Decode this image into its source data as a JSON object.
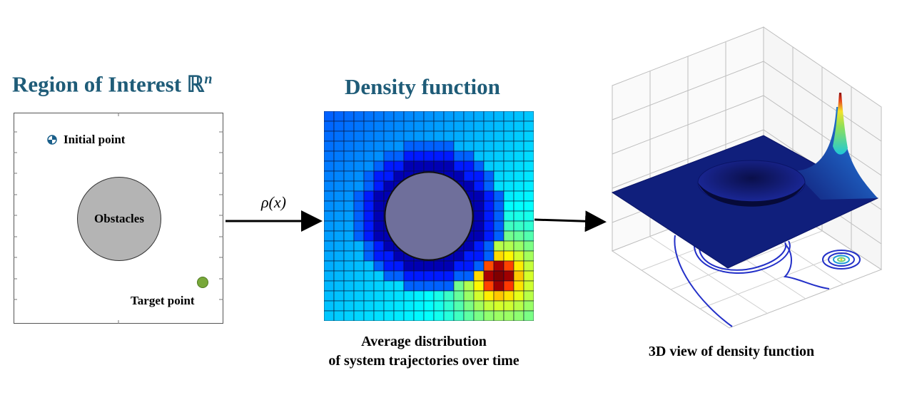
{
  "left_panel": {
    "title_text": "Region of Interest ℝ",
    "title_sup": "n",
    "initial_point_label": "Initial point",
    "obstacle_label": "Obstacles",
    "target_point_label": "Target point"
  },
  "arrow1_label": "ρ(x)",
  "middle_panel": {
    "title": "Density function",
    "caption_line1": "Average distribution",
    "caption_line2": "of system trajectories over time"
  },
  "right_panel": {
    "caption": "3D view of density function"
  },
  "colors": {
    "title": "#1f5c78",
    "obstacle_fill": "#b4b4b4",
    "obstacle_in_grid": "#6f6f9b",
    "target_point": "#78a83a",
    "surface": "#0f1e7a",
    "contour": "#2330c8"
  },
  "chart_data": {
    "type": "heatmap",
    "colormap": "jet",
    "grid_size": [
      21,
      21
    ],
    "obstacle": {
      "center_cell": [
        10,
        10
      ],
      "radius_cells": 4.4
    },
    "peak_cell": [
      17,
      16
    ]
  }
}
